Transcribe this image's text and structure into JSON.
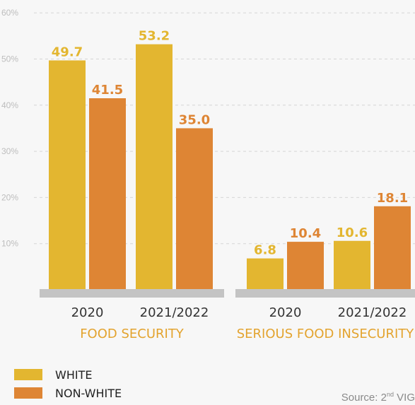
{
  "colors": {
    "white": "#e3b630",
    "non_white": "#de8534",
    "axis": "#bdbdbd",
    "group_label": "#e3a32e"
  },
  "source_prefix": "Source: 2",
  "source_sup": "nd",
  "source_suffix": " VIG",
  "chart_data": {
    "type": "bar",
    "yticks": [
      "10%",
      "20%",
      "30%",
      "40%",
      "50%",
      "60%"
    ],
    "ylim": [
      0,
      60
    ],
    "grid": true,
    "legend": [
      "WHITE",
      "NON-WHITE"
    ],
    "legend_placement": "bottom-left",
    "groups": [
      {
        "label": "FOOD SECURITY",
        "categories": [
          "2020",
          "2021/2022"
        ],
        "series": [
          {
            "name": "WHITE",
            "values": [
              49.7,
              53.2
            ],
            "labels": [
              "49.7",
              "53.2"
            ]
          },
          {
            "name": "NON-WHITE",
            "values": [
              41.5,
              35.0
            ],
            "labels": [
              "41.5",
              "35.0"
            ]
          }
        ]
      },
      {
        "label": "SERIOUS FOOD INSECURITY",
        "categories": [
          "2020",
          "2021/2022"
        ],
        "series": [
          {
            "name": "WHITE",
            "values": [
              6.8,
              10.6
            ],
            "labels": [
              "6.8",
              "10.6"
            ]
          },
          {
            "name": "NON-WHITE",
            "values": [
              10.4,
              18.1
            ],
            "labels": [
              "10.4",
              "18.1"
            ]
          }
        ]
      }
    ]
  }
}
